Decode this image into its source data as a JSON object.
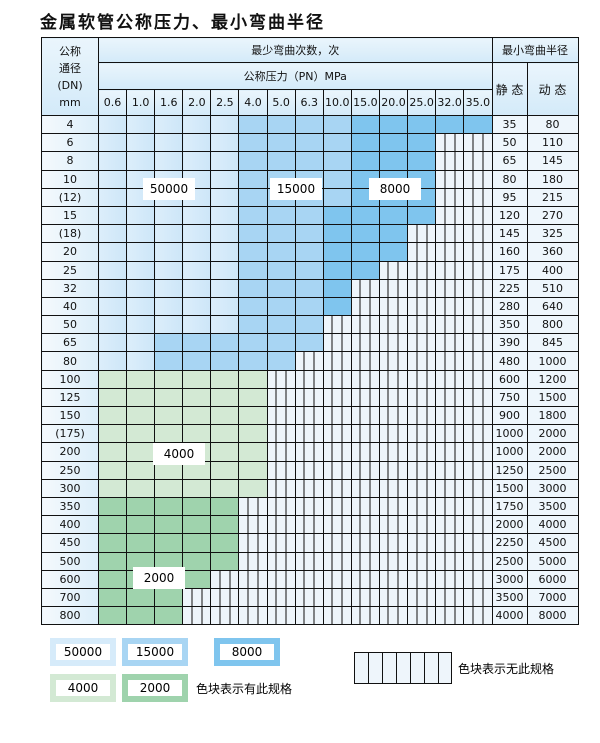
{
  "title": "金属软管公称压力、最小弯曲半径",
  "header": {
    "dn_label": [
      "公称",
      "通径",
      "(DN)",
      "mm"
    ],
    "bend_count": "最少弯曲次数，次",
    "pressure": "公称压力（PN）MPa",
    "min_radius": "最小弯曲半径",
    "static": "静 态",
    "dynamic": "动 态",
    "pressures": [
      "0.6",
      "1.0",
      "1.6",
      "2.0",
      "2.5",
      "4.0",
      "5.0",
      "6.3",
      "10.0",
      "15.0",
      "20.0",
      "25.0",
      "32.0",
      "35.0"
    ]
  },
  "legend_codes": {
    "A": "50000",
    "B": "15000",
    "C": "8000",
    "D": "4000",
    "E": "2000",
    "X": "none"
  },
  "colors": {
    "A": "#d6ebfa",
    "B": "#a8d5f3",
    "C": "#7fc5ee",
    "D": "#d3e9d4",
    "E": "#9fd3ad"
  },
  "rows": [
    {
      "dn": "4",
      "static": "35",
      "dynamic": "80",
      "cells": "AAAAABBBBCCCCC"
    },
    {
      "dn": "6",
      "static": "50",
      "dynamic": "110",
      "cells": "AAAAABBBBCCCXX"
    },
    {
      "dn": "8",
      "static": "65",
      "dynamic": "145",
      "cells": "AAAAABBBBCCCXX"
    },
    {
      "dn": "10",
      "static": "80",
      "dynamic": "180",
      "cells": "AAAAABBBBCCCXX"
    },
    {
      "dn": "(12)",
      "static": "95",
      "dynamic": "215",
      "cells": "AAAAABBBBCCCXX"
    },
    {
      "dn": "15",
      "static": "120",
      "dynamic": "270",
      "cells": "AAAAABBBCCCCXX"
    },
    {
      "dn": "(18)",
      "static": "145",
      "dynamic": "325",
      "cells": "AAAAABBBCCCXXX"
    },
    {
      "dn": "20",
      "static": "160",
      "dynamic": "360",
      "cells": "AAAAABBBCCCXXX"
    },
    {
      "dn": "25",
      "static": "175",
      "dynamic": "400",
      "cells": "AAAAABBBCCXXXX"
    },
    {
      "dn": "32",
      "static": "225",
      "dynamic": "510",
      "cells": "AAAAABBBCXXXXX"
    },
    {
      "dn": "40",
      "static": "280",
      "dynamic": "640",
      "cells": "AAAAABBBCXXXXX"
    },
    {
      "dn": "50",
      "static": "350",
      "dynamic": "800",
      "cells": "AAAAABBBXXXXXX"
    },
    {
      "dn": "65",
      "static": "390",
      "dynamic": "845",
      "cells": "AABBBBBBXXXXXX"
    },
    {
      "dn": "80",
      "static": "480",
      "dynamic": "1000",
      "cells": "AABBBBBXXXXXXX"
    },
    {
      "dn": "100",
      "static": "600",
      "dynamic": "1200",
      "cells": "DDDDDDXXXXXXXX"
    },
    {
      "dn": "125",
      "static": "750",
      "dynamic": "1500",
      "cells": "DDDDDDXXXXXXXX"
    },
    {
      "dn": "150",
      "static": "900",
      "dynamic": "1800",
      "cells": "DDDDDDXXXXXXXX"
    },
    {
      "dn": "(175)",
      "static": "1000",
      "dynamic": "2000",
      "cells": "DDDDDDXXXXXXXX"
    },
    {
      "dn": "200",
      "static": "1000",
      "dynamic": "2000",
      "cells": "DDDDDDXXXXXXXX"
    },
    {
      "dn": "250",
      "static": "1250",
      "dynamic": "2500",
      "cells": "DDDDDDXXXXXXXX"
    },
    {
      "dn": "300",
      "static": "1500",
      "dynamic": "3000",
      "cells": "DDDDDDXXXXXXXX"
    },
    {
      "dn": "350",
      "static": "1750",
      "dynamic": "3500",
      "cells": "EEEEEXXXXXXXXX"
    },
    {
      "dn": "400",
      "static": "2000",
      "dynamic": "4000",
      "cells": "EEEEEXXXXXXXXX"
    },
    {
      "dn": "450",
      "static": "2250",
      "dynamic": "4500",
      "cells": "EEEEEXXXXXXXXX"
    },
    {
      "dn": "500",
      "static": "2500",
      "dynamic": "5000",
      "cells": "EEEEEXXXXXXXXX"
    },
    {
      "dn": "600",
      "static": "3000",
      "dynamic": "6000",
      "cells": "EEEEXXXXXXXXXX"
    },
    {
      "dn": "700",
      "static": "3500",
      "dynamic": "7000",
      "cells": "EEEXXXXXXXXXXX"
    },
    {
      "dn": "800",
      "static": "4000",
      "dynamic": "8000",
      "cells": "EEEXXXXXXXXXXX"
    }
  ],
  "region_labels": {
    "A": "50000",
    "B": "15000",
    "C": "8000",
    "D": "4000",
    "E": "2000"
  },
  "legend": {
    "items": [
      "50000",
      "15000",
      "8000",
      "4000",
      "2000"
    ],
    "has_spec": "色块表示有此规格",
    "no_spec": "色块表示无此规格"
  }
}
